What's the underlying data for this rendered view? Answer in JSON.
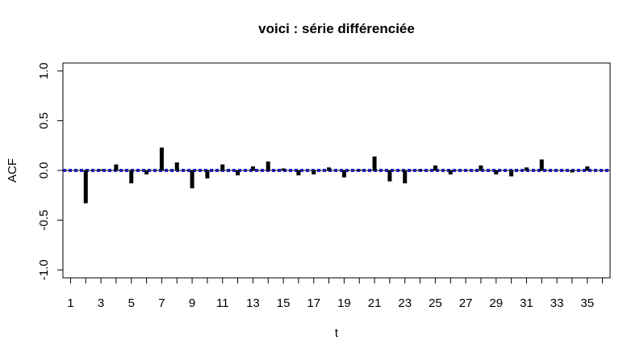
{
  "chart_data": {
    "type": "bar",
    "title": "voici : série différenciée",
    "xlabel": "t",
    "ylabel": "ACF",
    "xlim": [
      0.5,
      36.5
    ],
    "ylim": [
      -1.08,
      1.08
    ],
    "x_ticks": [
      1,
      2,
      3,
      4,
      5,
      6,
      7,
      8,
      9,
      10,
      11,
      12,
      13,
      14,
      15,
      16,
      17,
      18,
      19,
      20,
      21,
      22,
      23,
      24,
      25,
      26,
      27,
      28,
      29,
      30,
      31,
      32,
      33,
      34,
      35,
      36
    ],
    "x_tick_labels": [
      1,
      3,
      5,
      7,
      9,
      11,
      13,
      15,
      17,
      19,
      21,
      23,
      25,
      27,
      29,
      31,
      33,
      35
    ],
    "y_ticks": [
      -1.0,
      -0.5,
      0.0,
      0.5,
      1.0
    ],
    "y_tick_labels": [
      "-1.0",
      "-0.5",
      "0.0",
      "0.5",
      "1.0"
    ],
    "confidence_band": 0.01,
    "colors": {
      "bars": "#000000",
      "band": "#0000ff",
      "zero_line": "#000000"
    },
    "lags": [
      1,
      2,
      3,
      4,
      5,
      6,
      7,
      8,
      9,
      10,
      11,
      12,
      13,
      14,
      15,
      16,
      17,
      18,
      19,
      20,
      21,
      22,
      23,
      24,
      25,
      26,
      27,
      28,
      29,
      30,
      31,
      32,
      33,
      34,
      35
    ],
    "values": [
      0.0,
      -0.33,
      0.01,
      0.06,
      -0.13,
      -0.04,
      0.23,
      0.08,
      -0.18,
      -0.08,
      0.06,
      -0.05,
      0.04,
      0.09,
      0.02,
      -0.05,
      -0.04,
      0.03,
      -0.07,
      0.01,
      0.14,
      -0.11,
      -0.13,
      0.01,
      0.05,
      -0.04,
      0.0,
      0.05,
      -0.04,
      -0.06,
      0.03,
      0.11,
      0.0,
      -0.02,
      0.04
    ]
  }
}
